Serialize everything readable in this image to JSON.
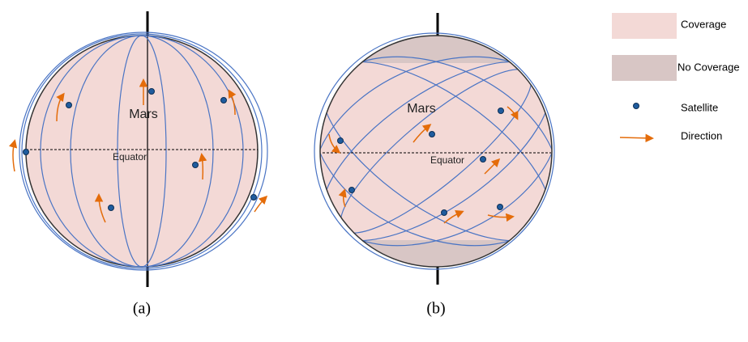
{
  "panel_a": {
    "planet_label": "Mars",
    "equator_label": "Equator",
    "caption": "(a)"
  },
  "panel_b": {
    "planet_label": "Mars",
    "equator_label": "Equator",
    "caption": "(b)"
  },
  "legend": {
    "items": [
      "Coverage",
      "No Coverage",
      "Satellite",
      "Direction"
    ]
  }
}
